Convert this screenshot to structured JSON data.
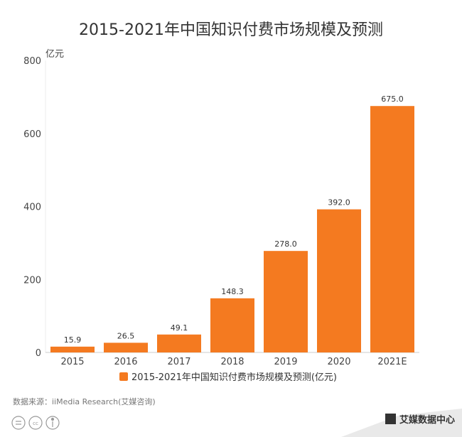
{
  "chart_data": {
    "type": "bar",
    "title": "2015-2021年中国知识付费市场规模及预测",
    "ylabel": "亿元",
    "categories": [
      "2015",
      "2016",
      "2017",
      "2018",
      "2019",
      "2020",
      "2021E"
    ],
    "series": [
      {
        "name": "2015-2021年中国知识付费市场规模及预测(亿元)",
        "values": [
          15.9,
          26.5,
          49.1,
          148.3,
          278.0,
          392.0,
          675.0
        ],
        "labels": [
          "15.9",
          "26.5",
          "49.1",
          "148.3",
          "278.0",
          "392.0",
          "675.0"
        ],
        "color": "#F47A20"
      }
    ],
    "ylim": [
      0,
      800
    ],
    "yticks": [
      "0",
      "200",
      "400",
      "600",
      "800"
    ],
    "grid": false,
    "legend": "bottom"
  },
  "source": "数据来源：iiMedia Research(艾媒咨询)",
  "logo": "艾媒数据中心"
}
